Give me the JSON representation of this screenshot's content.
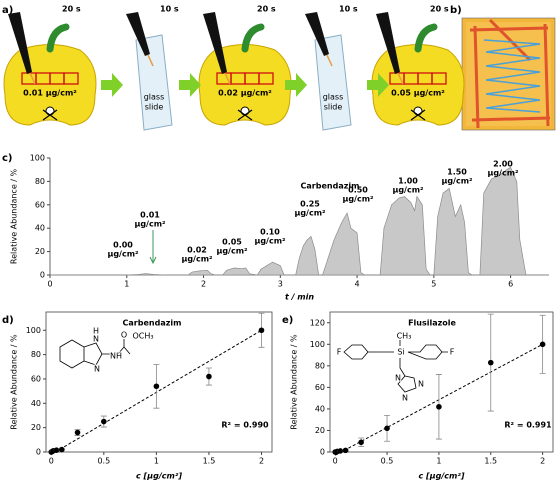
{
  "panel_labels": [
    "a)",
    "b)",
    "c)",
    "d)",
    "e)"
  ],
  "panel_a": {
    "peppers": [
      {
        "time": "20 s",
        "label": "0.01 µg/cm²"
      },
      {
        "time": "20 s",
        "label": "0.02 µg/cm²"
      },
      {
        "time": "20 s",
        "label": "0.05 µg/cm²"
      }
    ],
    "slides": [
      {
        "time": "10 s",
        "lines": [
          "glass",
          "slide"
        ]
      },
      {
        "time": "10 s",
        "lines": [
          "glass",
          "slide"
        ]
      }
    ]
  },
  "chart_data": [
    {
      "type": "area",
      "title": "Carbendazim",
      "x_label": "t / min",
      "y_label": "Relative Abundance / %",
      "x": [
        0,
        1.0,
        1.15,
        1.25,
        1.35,
        1.5,
        1.8,
        1.85,
        1.95,
        2.05,
        2.1,
        2.15,
        2.25,
        2.3,
        2.4,
        2.5,
        2.55,
        2.6,
        2.7,
        2.75,
        2.85,
        2.9,
        3.0,
        3.05,
        3.2,
        3.25,
        3.3,
        3.35,
        3.4,
        3.45,
        3.5,
        3.55,
        3.6,
        3.7,
        3.8,
        3.87,
        3.92,
        4.0,
        4.05,
        4.1,
        4.3,
        4.35,
        4.45,
        4.55,
        4.62,
        4.7,
        4.75,
        4.78,
        4.85,
        4.9,
        4.95,
        5.0,
        5.05,
        5.12,
        5.2,
        5.28,
        5.35,
        5.4,
        5.45,
        5.5,
        5.6,
        5.65,
        5.75,
        5.85,
        5.95,
        6.0,
        6.08,
        6.12,
        6.2,
        6.5
      ],
      "values": [
        0,
        0,
        0.5,
        1.2,
        0.5,
        0,
        0,
        2.5,
        3.5,
        4,
        1,
        0,
        0,
        4,
        6,
        5.5,
        6,
        1,
        0,
        5,
        9,
        11,
        8,
        0,
        0,
        15,
        25,
        30,
        33,
        22,
        0,
        0,
        10,
        30,
        45,
        53,
        40,
        36,
        2,
        0,
        0,
        40,
        60,
        66,
        67,
        62,
        55,
        67,
        60,
        5,
        0,
        0,
        50,
        70,
        74,
        50,
        60,
        45,
        2,
        0,
        0,
        70,
        82,
        85,
        90,
        92,
        80,
        30,
        0,
        0
      ],
      "color": "#c8c8c8",
      "line_color": "#8c8c8c",
      "xlim": [
        0,
        6.5
      ],
      "xticks": [
        0,
        1,
        2,
        3,
        4,
        5,
        6
      ],
      "ylim": [
        0,
        100
      ],
      "yticks": [
        0,
        20,
        40,
        60,
        80,
        100
      ],
      "frame": false,
      "annotations": [
        {
          "label": "0.00",
          "unit": "µg/cm²"
        },
        {
          "label": "0.01",
          "unit": "µg/cm²"
        },
        {
          "label": "0.02",
          "unit": "µg/cm²"
        },
        {
          "label": "0.05",
          "unit": "µg/cm²"
        },
        {
          "label": "0.10",
          "unit": "µg/cm²"
        },
        {
          "label": "0.25",
          "unit": "µg/cm²"
        },
        {
          "label": "0.50",
          "unit": "µg/cm²"
        },
        {
          "label": "1.00",
          "unit": "µg/cm²"
        },
        {
          "label": "1.50",
          "unit": "µg/cm²"
        },
        {
          "label": "2.00",
          "unit": "µg/cm²"
        }
      ]
    },
    {
      "type": "scatter",
      "title": "Carbendazim",
      "x_label": "c [µg/cm²]",
      "y_label": "Relative Abundance / %",
      "x": [
        0,
        0.01,
        0.02,
        0.05,
        0.1,
        0.25,
        0.5,
        1.0,
        1.5,
        2.0
      ],
      "values": [
        0,
        0.5,
        1,
        1.5,
        2,
        16,
        25,
        54,
        62,
        100
      ],
      "errors": [
        0,
        0.5,
        0.5,
        0.5,
        0.5,
        2.5,
        4.5,
        18,
        7,
        14
      ],
      "fit": {
        "x": [
          0,
          2
        ],
        "y": [
          -2,
          100
        ]
      },
      "r2": "R² = 0.990",
      "structure": [
        "H",
        "N",
        "N",
        "NH",
        "O",
        "OCH₃"
      ],
      "color": "#000000",
      "error_color": "#888888",
      "xlim": [
        -0.05,
        2.1
      ],
      "xticks": [
        0,
        0.5,
        1,
        1.5,
        2
      ],
      "ylim": [
        0,
        115
      ],
      "yticks": [
        0,
        20,
        40,
        60,
        80,
        100
      ],
      "frame": true
    },
    {
      "type": "scatter",
      "title": "Flusilazole",
      "x_label": "c [µg/cm²]",
      "y_label": "Relative Abundance / %",
      "x": [
        0,
        0.01,
        0.02,
        0.05,
        0.1,
        0.25,
        0.5,
        1.0,
        1.5,
        2.0
      ],
      "values": [
        0,
        0,
        0.5,
        1,
        1.5,
        9,
        22,
        42,
        83,
        100
      ],
      "errors": [
        0,
        0,
        0,
        0.5,
        0.5,
        4,
        12,
        30,
        45,
        27
      ],
      "fit": {
        "x": [
          0,
          2
        ],
        "y": [
          -3,
          100
        ]
      },
      "r2": "R² = 0.991",
      "structure": [
        "F",
        "F",
        "CH₃",
        "Si",
        "N",
        "N",
        "N"
      ],
      "color": "#000000",
      "error_color": "#888888",
      "xlim": [
        -0.05,
        2.1
      ],
      "xticks": [
        0,
        0.5,
        1,
        1.5,
        2
      ],
      "ylim": [
        0,
        130
      ],
      "yticks": [
        0,
        20,
        40,
        60,
        80,
        100,
        120
      ],
      "frame": true
    }
  ]
}
